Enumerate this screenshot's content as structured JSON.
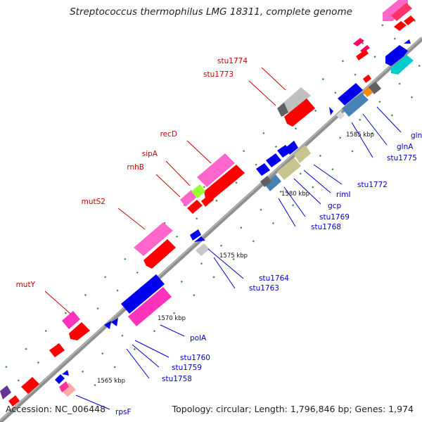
{
  "title": "Streptococcus thermophilus LMG 18311, complete genome",
  "accession_text": "Accession: NC_006448",
  "topology_text": "Topology: circular; Length: 1,796,846 bp; Genes: 1,974",
  "colors": {
    "backbone": "#8f8f8f",
    "red_label": "#cc0000",
    "blue_label": "#0000cc",
    "tick": "#2e8b2e"
  },
  "scale_labels": [
    "1565 kbp",
    "1570 kbp",
    "1575 kbp",
    "1580 kbp",
    "1585 kbp"
  ],
  "reverse_labels": [
    "mutY",
    "mutS2",
    "rnhB",
    "sipA",
    "recD",
    "stu1773",
    "stu1774"
  ],
  "forward_labels": [
    "rpsF",
    "stu1758",
    "stu1759",
    "stu1760",
    "polA",
    "stu1763",
    "stu1764",
    "stu1768",
    "stu1769",
    "gcp",
    "rimI",
    "stu1772",
    "stu1775",
    "glnA",
    "glnR"
  ]
}
